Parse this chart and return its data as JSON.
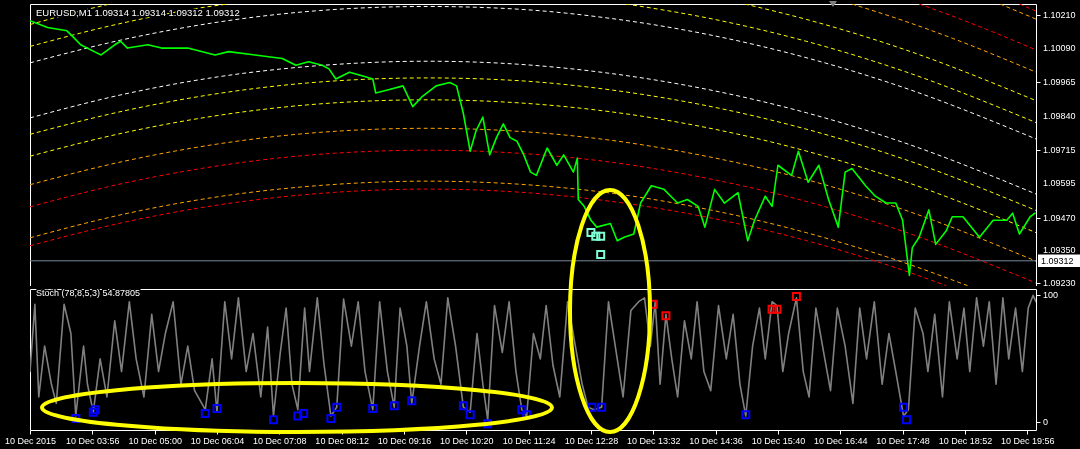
{
  "chart_data": [
    {
      "type": "line",
      "title": "EURUSD,M1 1.09314 1.09314 1.09312 1.09312",
      "xlim": [
        "2015-12-10T02:52",
        "2015-12-10T20:05"
      ],
      "ylim": [
        1.0922,
        1.1025
      ],
      "yticks": [
        {
          "value": 1.1021,
          "label": "1.10210"
        },
        {
          "value": 1.1009,
          "label": "1.10090"
        },
        1.09965,
        {
          "value": 1.0984,
          "label": "1.09840"
        },
        1.09715,
        1.09595,
        {
          "value": 1.0947,
          "label": "1.09470"
        },
        {
          "value": 1.0935,
          "label": "1.09350"
        },
        {
          "value": 1.0923,
          "label": "1.09230"
        }
      ],
      "tick_labels": "y",
      "ref_lines": [
        {
          "axis": "y",
          "value": 1.09312,
          "label": "1.09312",
          "color": "#778899"
        }
      ],
      "series": [
        {
          "color": "#ffffff",
          "line_style": "dashed",
          "x": [
            "2015-12-10T02:52",
            "2015-12-10T04:29",
            "2015-12-10T06:09",
            "2015-12-10T07:49",
            "2015-12-10T09:40",
            "2015-12-10T11:09",
            "2015-12-10T12:49",
            "2015-12-10T14:29",
            "2015-12-10T16:09",
            "2015-12-10T17:49",
            "2015-12-10T20:05"
          ],
          "values": [
            1.10035,
            1.10121,
            1.10186,
            1.10226,
            1.10241,
            1.10232,
            1.10197,
            1.10138,
            1.10054,
            1.09945,
            1.09757
          ]
        },
        {
          "color": "#ffffff",
          "line_style": "dashed",
          "x": [
            "2015-12-10T02:52",
            "2015-12-10T04:29",
            "2015-12-10T06:09",
            "2015-12-10T07:49",
            "2015-12-10T09:40",
            "2015-12-10T11:09",
            "2015-12-10T12:49",
            "2015-12-10T14:29",
            "2015-12-10T16:09",
            "2015-12-10T17:49",
            "2015-12-10T20:05"
          ],
          "values": [
            1.09834,
            1.09921,
            1.09986,
            1.10025,
            1.10041,
            1.10031,
            1.09996,
            1.09937,
            1.09853,
            1.09744,
            1.09556
          ]
        },
        {
          "color": "#ffff00",
          "line_style": "dashed",
          "x": [
            "2015-12-10T02:52",
            "2015-12-10T04:29",
            "2015-12-10T06:09",
            "2015-12-10T06:16"
          ],
          "values": [
            1.10095,
            1.10182,
            1.10247,
            1.1025
          ]
        },
        {
          "color": "#ffff00",
          "line_style": "dashed",
          "x": [
            "2015-12-10T13:04",
            "2015-12-10T14:29",
            "2015-12-10T16:09",
            "2015-12-10T17:49",
            "2015-12-10T20:05"
          ],
          "values": [
            1.1025,
            1.10198,
            1.10114,
            1.10005,
            1.09817
          ]
        },
        {
          "color": "#ffff00",
          "line_style": "dashed",
          "x": [
            "2015-12-10T02:52",
            "2015-12-10T04:29",
            "2015-12-10T06:09",
            "2015-12-10T07:49",
            "2015-12-10T09:40",
            "2015-12-10T11:09",
            "2015-12-10T12:49",
            "2015-12-10T14:29",
            "2015-12-10T16:09",
            "2015-12-10T17:49",
            "2015-12-10T20:05"
          ],
          "values": [
            1.09774,
            1.0986,
            1.09925,
            1.09965,
            1.0998,
            1.09971,
            1.09936,
            1.09877,
            1.09793,
            1.09684,
            1.09496
          ]
        },
        {
          "color": "#ffff00",
          "line_style": "dashed",
          "x": [
            "2015-12-10T02:52",
            "2015-12-10T03:39",
            "2015-12-10T04:14"
          ],
          "values": [
            1.10175,
            1.1022,
            1.1025
          ]
        },
        {
          "color": "#ffff00",
          "line_style": "dashed",
          "x": [
            "2015-12-10T15:06",
            "2015-12-10T16:09",
            "2015-12-10T17:49",
            "2015-12-10T20:05"
          ],
          "values": [
            1.1025,
            1.10194,
            1.10085,
            1.09897
          ]
        },
        {
          "color": "#ffff00",
          "line_style": "dashed",
          "x": [
            "2015-12-10T02:52",
            "2015-12-10T04:29",
            "2015-12-10T06:09",
            "2015-12-10T07:49",
            "2015-12-10T09:40",
            "2015-12-10T11:09",
            "2015-12-10T12:49",
            "2015-12-10T14:29",
            "2015-12-10T16:09",
            "2015-12-10T17:49",
            "2015-12-10T20:05"
          ],
          "values": [
            1.09694,
            1.0978,
            1.09845,
            1.09885,
            1.099,
            1.0989,
            1.09856,
            1.09797,
            1.09713,
            1.09603,
            1.09415
          ]
        },
        {
          "color": "#ffa500",
          "line_style": "dashed",
          "x": [
            "2015-12-10T16:56",
            "2015-12-10T17:49",
            "2015-12-10T18:39",
            "2015-12-10T20:05"
          ],
          "values": [
            1.1025,
            1.10189,
            1.10125,
            1.10001
          ]
        },
        {
          "color": "#ffa500",
          "line_style": "dashed",
          "x": [
            "2015-12-10T02:52",
            "2015-12-10T04:29",
            "2015-12-10T06:09",
            "2015-12-10T07:49",
            "2015-12-10T09:40",
            "2015-12-10T11:09",
            "2015-12-10T12:49",
            "2015-12-10T14:29",
            "2015-12-10T16:09",
            "2015-12-10T17:49",
            "2015-12-10T20:05"
          ],
          "values": [
            1.0959,
            1.09676,
            1.09741,
            1.09781,
            1.09796,
            1.09786,
            1.09752,
            1.09692,
            1.09609,
            1.09499,
            1.09311
          ]
        },
        {
          "color": "#ff0000",
          "line_style": "dashed",
          "x": [
            "2015-12-10T18:05",
            "2015-12-10T18:39",
            "2015-12-10T19:29",
            "2015-12-10T20:05"
          ],
          "values": [
            1.1025,
            1.10206,
            1.10136,
            1.10082
          ]
        },
        {
          "color": "#ff0000",
          "line_style": "dashed",
          "x": [
            "2015-12-10T02:52",
            "2015-12-10T04:29",
            "2015-12-10T06:09",
            "2015-12-10T07:49",
            "2015-12-10T09:40",
            "2015-12-10T11:09",
            "2015-12-10T12:49",
            "2015-12-10T14:29",
            "2015-12-10T16:09",
            "2015-12-10T17:49",
            "2015-12-10T20:05"
          ],
          "values": [
            1.09509,
            1.09596,
            1.09661,
            1.09701,
            1.09716,
            1.09706,
            1.09672,
            1.09612,
            1.09529,
            1.09419,
            1.09231
          ]
        },
        {
          "color": "#ffa500",
          "line_style": "dashed",
          "x": [
            "2015-12-10T19:28",
            "2015-12-10T20:05"
          ],
          "values": [
            1.1025,
            1.10195
          ]
        },
        {
          "color": "#ffa500",
          "line_style": "dashed",
          "x": [
            "2015-12-10T02:52",
            "2015-12-10T04:29",
            "2015-12-10T06:09",
            "2015-12-10T07:49",
            "2015-12-10T09:40",
            "2015-12-10T11:09",
            "2015-12-10T12:49",
            "2015-12-10T14:29",
            "2015-12-10T16:09",
            "2015-12-10T17:49",
            "2015-12-10T18:55"
          ],
          "values": [
            1.09396,
            1.09483,
            1.09548,
            1.09587,
            1.09603,
            1.09593,
            1.09559,
            1.09499,
            1.09415,
            1.09306,
            1.09221
          ]
        },
        {
          "color": "#ff0000",
          "line_style": "dashed",
          "x": [
            "2015-12-10T19:48",
            "2015-12-10T20:05"
          ],
          "values": [
            1.1025,
            1.10224
          ]
        },
        {
          "color": "#ff0000",
          "line_style": "dashed",
          "x": [
            "2015-12-10T02:52",
            "2015-12-10T04:29",
            "2015-12-10T06:09",
            "2015-12-10T07:49",
            "2015-12-10T09:40",
            "2015-12-10T11:09",
            "2015-12-10T12:49",
            "2015-12-10T14:29",
            "2015-12-10T16:09",
            "2015-12-10T17:49",
            "2015-12-10T18:33"
          ],
          "values": [
            1.09367,
            1.09453,
            1.09518,
            1.09558,
            1.09574,
            1.09564,
            1.09529,
            1.0947,
            1.09386,
            1.09277,
            1.09221
          ]
        },
        {
          "color": "#00ff00",
          "x": [
            "2015-12-10T02:52",
            "2015-12-10T03:10",
            "2015-12-10T03:30",
            "2015-12-10T03:37",
            "2015-12-10T03:44",
            "2015-12-10T03:58",
            "2015-12-10T04:05",
            "2015-12-10T04:19",
            "2015-12-10T04:25",
            "2015-12-10T04:32",
            "2015-12-10T04:53",
            "2015-12-10T05:07",
            "2015-12-10T05:34",
            "2015-12-10T06:02",
            "2015-12-10T06:16",
            "2015-12-10T06:43",
            "2015-12-10T07:11",
            "2015-12-10T07:25",
            "2015-12-10T07:38",
            "2015-12-10T07:52",
            "2015-12-10T07:59",
            "2015-12-10T08:06",
            "2015-12-10T08:20",
            "2015-12-10T08:33",
            "2015-12-10T08:44",
            "2015-12-10T08:47",
            "2015-12-10T09:01",
            "2015-12-10T09:15",
            "2015-12-10T09:25",
            "2015-12-10T09:35",
            "2015-12-10T09:49",
            "2015-12-10T10:03",
            "2015-12-10T10:10",
            "2015-12-10T10:17",
            "2015-12-10T10:24",
            "2015-12-10T10:30",
            "2015-12-10T10:37",
            "2015-12-10T10:44",
            "2015-12-10T10:51",
            "2015-12-10T10:58",
            "2015-12-10T11:05",
            "2015-12-10T11:12",
            "2015-12-10T11:19",
            "2015-12-10T11:26",
            "2015-12-10T11:32",
            "2015-12-10T11:43",
            "2015-12-10T11:53",
            "2015-12-10T12:00",
            "2015-12-10T12:10",
            "2015-12-10T12:14",
            "2015-12-10T12:15",
            "2015-12-10T12:21",
            "2015-12-10T12:28",
            "2015-12-10T12:34",
            "2015-12-10T12:48",
            "2015-12-10T12:55",
            "2015-12-10T13:02",
            "2015-12-10T13:12",
            "2015-12-10T13:19",
            "2015-12-10T13:30",
            "2015-12-10T13:43",
            "2015-12-10T13:50",
            "2015-12-10T13:57",
            "2015-12-10T14:07",
            "2015-12-10T14:18",
            "2015-12-10T14:25",
            "2015-12-10T14:35",
            "2015-12-10T14:45",
            "2015-12-10T14:59",
            "2015-12-10T15:09",
            "2015-12-10T15:16",
            "2015-12-10T15:27",
            "2015-12-10T15:34",
            "2015-12-10T15:40",
            "2015-12-10T15:54",
            "2015-12-10T16:01",
            "2015-12-10T16:11",
            "2015-12-10T16:22",
            "2015-12-10T16:32",
            "2015-12-10T16:42",
            "2015-12-10T16:49",
            "2015-12-10T16:56",
            "2015-12-10T17:10",
            "2015-12-10T17:20",
            "2015-12-10T17:31",
            "2015-12-10T17:41",
            "2015-12-10T17:48",
            "2015-12-10T17:55",
            "2015-12-10T17:58",
            "2015-12-10T18:05",
            "2015-12-10T18:15",
            "2015-12-10T18:22",
            "2015-12-10T18:33",
            "2015-12-10T18:39",
            "2015-12-10T18:50",
            "2015-12-10T19:07",
            "2015-12-10T19:21",
            "2015-12-10T19:35",
            "2015-12-10T19:41",
            "2015-12-10T19:48",
            "2015-12-10T19:59",
            "2015-12-10T20:04"
          ],
          "values": [
            1.10189,
            1.10164,
            1.10152,
            1.10127,
            1.10101,
            1.10076,
            1.10064,
            1.10101,
            1.10114,
            1.10089,
            1.10101,
            1.10089,
            1.10089,
            1.10064,
            1.10076,
            1.10064,
            1.10051,
            1.10026,
            1.10039,
            1.10026,
            1.10013,
            1.09976,
            1.10001,
            1.09988,
            1.09976,
            1.09925,
            1.09938,
            1.09951,
            1.09875,
            1.09913,
            1.09951,
            1.09963,
            1.09951,
            1.0985,
            1.09712,
            1.09787,
            1.09837,
            1.09699,
            1.09762,
            1.09812,
            1.09762,
            1.09749,
            1.09699,
            1.09636,
            1.09624,
            1.09724,
            1.09661,
            1.09699,
            1.09636,
            1.09687,
            1.09536,
            1.09511,
            1.0946,
            1.09435,
            1.09448,
            1.09385,
            1.09398,
            1.0941,
            1.09523,
            1.09586,
            1.09573,
            1.09548,
            1.09523,
            1.09536,
            1.09511,
            1.09435,
            1.09573,
            1.09523,
            1.09561,
            1.09385,
            1.0946,
            1.09548,
            1.09511,
            1.09661,
            1.09624,
            1.09712,
            1.09599,
            1.09661,
            1.09536,
            1.09435,
            1.09636,
            1.09649,
            1.09586,
            1.09548,
            1.09523,
            1.09523,
            1.0946,
            1.09259,
            1.0936,
            1.09398,
            1.09498,
            1.09372,
            1.09423,
            1.09473,
            1.09473,
            1.09398,
            1.0946,
            1.0946,
            1.09486,
            1.0941,
            1.09473,
            1.09486
          ]
        },
        {
          "type": "scatter",
          "marker": "square",
          "color": "#7fffd4",
          "x": [
            "2015-12-10T12:28",
            "2015-12-10T12:33",
            "2015-12-10T12:38",
            "2015-12-10T12:38"
          ],
          "values": [
            1.09415,
            1.09402,
            1.09402,
            1.09335
          ]
        }
      ]
    },
    {
      "type": "line",
      "title": "Stoch (78,8,5,3) 54.87805",
      "xlim": [
        "2015-12-10T02:52",
        "2015-12-10T20:05"
      ],
      "xticks": [
        {
          "value": "2015-12-10T02:52",
          "label": "10 Dec 2015"
        },
        {
          "value": "2015-12-10T03:56",
          "label": "10 Dec 03:56"
        },
        {
          "value": "2015-12-10T05:00",
          "label": "10 Dec 05:00"
        },
        {
          "value": "2015-12-10T06:04",
          "label": "10 Dec 06:04"
        },
        {
          "value": "2015-12-10T07:08",
          "label": "10 Dec 07:08"
        },
        {
          "value": "2015-12-10T08:12",
          "label": "10 Dec 08:12"
        },
        {
          "value": "2015-12-10T09:16",
          "label": "10 Dec 09:16"
        },
        {
          "value": "2015-12-10T10:20",
          "label": "10 Dec 10:20"
        },
        {
          "value": "2015-12-10T11:24",
          "label": "10 Dec 11:24"
        },
        {
          "value": "2015-12-10T12:28",
          "label": "10 Dec 12:28"
        },
        {
          "value": "2015-12-10T13:32",
          "label": "10 Dec 13:32"
        },
        {
          "value": "2015-12-10T14:36",
          "label": "10 Dec 14:36"
        },
        {
          "value": "2015-12-10T15:40",
          "label": "10 Dec 15:40"
        },
        {
          "value": "2015-12-10T16:44",
          "label": "10 Dec 16:44"
        },
        {
          "value": "2015-12-10T17:48",
          "label": "10 Dec 17:48"
        },
        {
          "value": "2015-12-10T18:52",
          "label": "10 Dec 18:52"
        },
        {
          "value": "2015-12-10T19:56",
          "label": "10 Dec 19:56"
        }
      ],
      "ylim": [
        -6,
        105
      ],
      "yticks": [
        0,
        100
      ],
      "series": [
        {
          "color": "#808080",
          "x": [
            "2015-12-10T02:52",
            "2015-12-10T02:57",
            "2015-12-10T03:01",
            "2015-12-10T03:07",
            "2015-12-10T03:14",
            "2015-12-10T03:19",
            "2015-12-10T03:27",
            "2015-12-10T03:34",
            "2015-12-10T03:39",
            "2015-12-10T03:47",
            "2015-12-10T03:51",
            "2015-12-10T03:57",
            "2015-12-10T04:04",
            "2015-12-10T04:11",
            "2015-12-10T04:19",
            "2015-12-10T04:26",
            "2015-12-10T04:34",
            "2015-12-10T04:41",
            "2015-12-10T04:49",
            "2015-12-10T04:57",
            "2015-12-10T05:04",
            "2015-12-10T05:11",
            "2015-12-10T05:19",
            "2015-12-10T05:27",
            "2015-12-10T05:34",
            "2015-12-10T05:41",
            "2015-12-10T05:52",
            "2015-12-10T05:59",
            "2015-12-10T06:04",
            "2015-12-10T06:12",
            "2015-12-10T06:19",
            "2015-12-10T06:26",
            "2015-12-10T06:34",
            "2015-12-10T06:41",
            "2015-12-10T06:49",
            "2015-12-10T06:56",
            "2015-12-10T07:02",
            "2015-12-10T07:09",
            "2015-12-10T07:15",
            "2015-12-10T07:21",
            "2015-12-10T07:27",
            "2015-12-10T07:34",
            "2015-12-10T07:39",
            "2015-12-10T07:47",
            "2015-12-10T07:54",
            "2015-12-10T08:01",
            "2015-12-10T08:07",
            "2015-12-10T08:14",
            "2015-12-10T08:22",
            "2015-12-10T08:29",
            "2015-12-10T08:36",
            "2015-12-10T08:44",
            "2015-12-10T08:51",
            "2015-12-10T08:59",
            "2015-12-10T09:06",
            "2015-12-10T09:12",
            "2015-12-10T09:19",
            "2015-12-10T09:24",
            "2015-12-10T09:32",
            "2015-12-10T09:39",
            "2015-12-10T09:47",
            "2015-12-10T09:54",
            "2015-12-10T10:01",
            "2015-12-10T10:09",
            "2015-12-10T10:17",
            "2015-12-10T10:24",
            "2015-12-10T10:31",
            "2015-12-10T10:37",
            "2015-12-10T10:42",
            "2015-12-10T10:49",
            "2015-12-10T10:57",
            "2015-12-10T11:04",
            "2015-12-10T11:11",
            "2015-12-10T11:17",
            "2015-12-10T11:22",
            "2015-12-10T11:29",
            "2015-12-10T11:36",
            "2015-12-10T11:42",
            "2015-12-10T11:49",
            "2015-12-10T11:56",
            "2015-12-10T12:04",
            "2015-12-10T12:12",
            "2015-12-10T12:19",
            "2015-12-10T12:25",
            "2015-12-10T12:31",
            "2015-12-10T12:39",
            "2015-12-10T12:46",
            "2015-12-10T12:54",
            "2015-12-10T13:01",
            "2015-12-10T13:09",
            "2015-12-10T13:17",
            "2015-12-10T13:23",
            "2015-12-10T13:29",
            "2015-12-10T13:34",
            "2015-12-10T13:39",
            "2015-12-10T13:45",
            "2015-12-10T13:51",
            "2015-12-10T13:57",
            "2015-12-10T14:04",
            "2015-12-10T14:11",
            "2015-12-10T14:17",
            "2015-12-10T14:24",
            "2015-12-10T14:31",
            "2015-12-10T14:39",
            "2015-12-10T14:47",
            "2015-12-10T14:54",
            "2015-12-10T15:01",
            "2015-12-10T15:07",
            "2015-12-10T15:14",
            "2015-12-10T15:21",
            "2015-12-10T15:27",
            "2015-12-10T15:34",
            "2015-12-10T15:39",
            "2015-12-10T15:45",
            "2015-12-10T15:51",
            "2015-12-10T15:59",
            "2015-12-10T16:06",
            "2015-12-10T16:12",
            "2015-12-10T16:19",
            "2015-12-10T16:27",
            "2015-12-10T16:34",
            "2015-12-10T16:41",
            "2015-12-10T16:49",
            "2015-12-10T16:57",
            "2015-12-10T17:04",
            "2015-12-10T17:11",
            "2015-12-10T17:19",
            "2015-12-10T17:27",
            "2015-12-10T17:34",
            "2015-12-10T17:41",
            "2015-12-10T17:49",
            "2015-12-10T17:54",
            "2015-12-10T18:01",
            "2015-12-10T18:09",
            "2015-12-10T18:14",
            "2015-12-10T18:21",
            "2015-12-10T18:29",
            "2015-12-10T18:36",
            "2015-12-10T18:44",
            "2015-12-10T18:51",
            "2015-12-10T18:57",
            "2015-12-10T19:04",
            "2015-12-10T19:11",
            "2015-12-10T19:17",
            "2015-12-10T19:24",
            "2015-12-10T19:31",
            "2015-12-10T19:37",
            "2015-12-10T19:44",
            "2015-12-10T19:51",
            "2015-12-10T19:57",
            "2015-12-10T20:02",
            "2015-12-10T20:05"
          ],
          "values": [
            40,
            93,
            20,
            60,
            30,
            15,
            93,
            70,
            5,
            60,
            30,
            8,
            50,
            20,
            80,
            40,
            95,
            50,
            20,
            85,
            40,
            70,
            95,
            30,
            60,
            25,
            10,
            50,
            8,
            95,
            50,
            98,
            40,
            70,
            20,
            75,
            5,
            55,
            90,
            30,
            10,
            90,
            40,
            98,
            45,
            5,
            12,
            97,
            60,
            95,
            40,
            10,
            95,
            40,
            12,
            90,
            60,
            15,
            60,
            95,
            50,
            30,
            98,
            60,
            12,
            8,
            70,
            30,
            2,
            92,
            55,
            95,
            40,
            10,
            5,
            70,
            50,
            92,
            45,
            20,
            95,
            60,
            30,
            12,
            10,
            12,
            95,
            55,
            20,
            88,
            95,
            98,
            60,
            95,
            30,
            85,
            50,
            20,
            80,
            50,
            95,
            40,
            25,
            92,
            50,
            85,
            30,
            5,
            60,
            90,
            50,
            95,
            92,
            40,
            70,
            98,
            40,
            20,
            90,
            55,
            25,
            90,
            60,
            15,
            90,
            50,
            95,
            30,
            70,
            40,
            5,
            10,
            90,
            70,
            40,
            85,
            20,
            95,
            50,
            90,
            40,
            98,
            60,
            95,
            30,
            98,
            50,
            90,
            40,
            90,
            100,
            95
          ]
        },
        {
          "type": "scatter",
          "marker": "square",
          "color": "#0000ff",
          "x": [
            "2015-12-10T03:39",
            "2015-12-10T03:57",
            "2015-12-10T03:59",
            "2015-12-10T05:52",
            "2015-12-10T06:04",
            "2015-12-10T07:02",
            "2015-12-10T07:27",
            "2015-12-10T07:33",
            "2015-12-10T08:01",
            "2015-12-10T08:07",
            "2015-12-10T08:44",
            "2015-12-10T09:06",
            "2015-12-10T09:24",
            "2015-12-10T10:17",
            "2015-12-10T10:24",
            "2015-12-10T10:42",
            "2015-12-10T11:17",
            "2015-12-10T11:22",
            "2015-12-10T12:29",
            "2015-12-10T12:39",
            "2015-12-10T15:07",
            "2015-12-10T17:49",
            "2015-12-10T17:52"
          ],
          "values": [
            3,
            8,
            10,
            7,
            11,
            2,
            5,
            7,
            3,
            12,
            11,
            13,
            17,
            13,
            6,
            -1,
            10,
            6,
            12,
            12,
            6,
            12,
            2
          ]
        },
        {
          "type": "scatter",
          "marker": "square",
          "color": "#ff0000",
          "x": [
            "2015-12-10T13:32",
            "2015-12-10T13:45",
            "2015-12-10T15:34",
            "2015-12-10T15:39",
            "2015-12-10T15:59"
          ],
          "values": [
            93,
            84,
            89,
            89,
            99
          ]
        }
      ]
    }
  ]
}
